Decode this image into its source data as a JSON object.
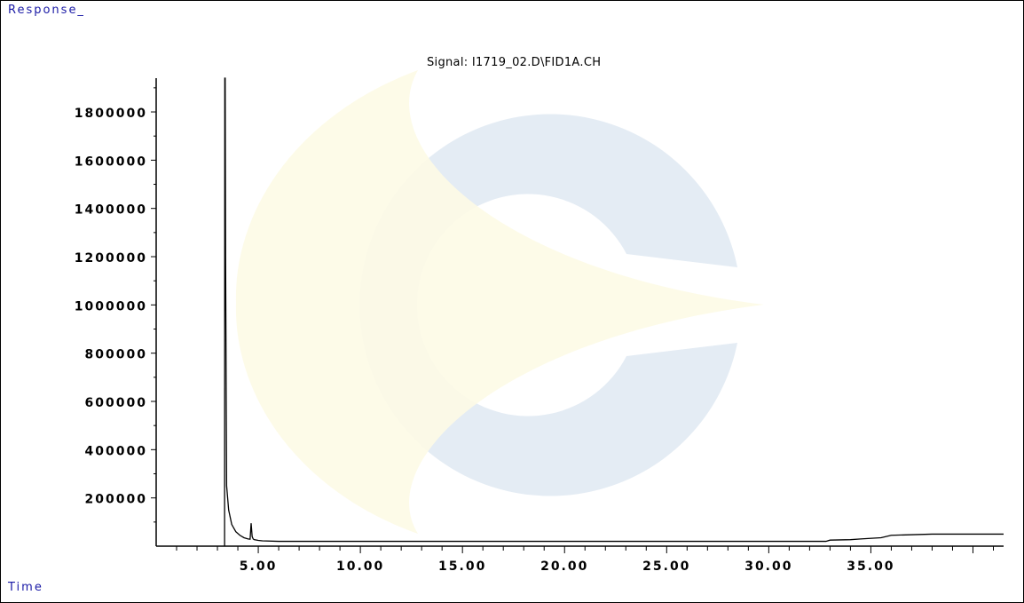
{
  "window": {
    "ylabel": "Response_",
    "xlabel": "Time"
  },
  "watermark": {
    "shape": "logo-c-ring",
    "colors": [
      "#e4ecf4",
      "#fdfbe6"
    ]
  },
  "chart_data": {
    "type": "line",
    "title": "Signal: I1719_02.D\\FID1A.CH",
    "xlabel": "Time",
    "ylabel": "Response_",
    "xlim": [
      0,
      41.5
    ],
    "ylim": [
      0,
      1940000
    ],
    "x_ticks": [
      5,
      10,
      15,
      20,
      25,
      30,
      35
    ],
    "x_tick_labels": [
      "5.00",
      "10.00",
      "15.00",
      "20.00",
      "25.00",
      "30.00",
      "35.00"
    ],
    "y_ticks": [
      200000,
      400000,
      600000,
      800000,
      1000000,
      1200000,
      1400000,
      1600000,
      1800000
    ],
    "y_tick_labels": [
      "200000",
      "400000",
      "600000",
      "800000",
      "1000000",
      "1200000",
      "1400000",
      "1600000",
      "1800000"
    ],
    "line_color": "#000000",
    "series": [
      {
        "x": [
          3.35,
          3.36,
          3.38,
          3.4,
          3.45,
          3.55,
          3.7,
          3.9,
          4.1,
          4.3,
          4.5,
          4.6,
          4.62,
          4.65,
          4.7,
          4.75,
          4.8,
          5.0,
          5.2,
          6.0,
          8.0,
          10.0,
          15.0,
          20.0,
          25.0,
          30.0,
          32.8,
          33.0,
          34.0,
          34.5,
          35.5,
          36.0,
          38.0,
          41.5
        ],
        "y": [
          0,
          1940000,
          1940000,
          1200000,
          250000,
          150000,
          90000,
          60000,
          45000,
          35000,
          30000,
          29000,
          55000,
          95000,
          40000,
          30000,
          27000,
          24000,
          22000,
          20000,
          20000,
          20000,
          20000,
          20000,
          20000,
          20000,
          20000,
          25000,
          27000,
          30000,
          35000,
          45000,
          50000,
          50000
        ]
      }
    ]
  }
}
